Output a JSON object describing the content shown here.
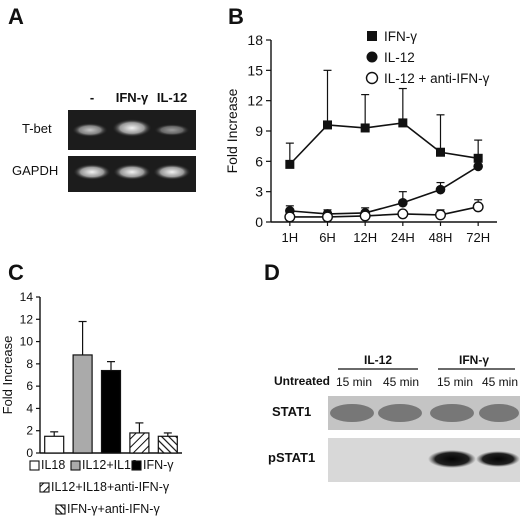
{
  "panel_labels": {
    "A": "A",
    "B": "B",
    "C": "C",
    "D": "D"
  },
  "panel_a": {
    "lanes": [
      "-",
      "IFN-γ",
      "IL-12"
    ],
    "rows": [
      "T-bet",
      "GAPDH"
    ]
  },
  "panel_d": {
    "groups": [
      {
        "label": "IL-12",
        "times": [
          "15 min",
          "45 min"
        ]
      },
      {
        "label": "IFN-γ",
        "times": [
          "15 min",
          "45 min"
        ]
      }
    ],
    "untreated_label": "Untreated",
    "rows": [
      "STAT1",
      "pSTAT1"
    ]
  },
  "chart_data": [
    {
      "panel": "B",
      "type": "line",
      "categories": [
        "1H",
        "6H",
        "12H",
        "24H",
        "48H",
        "72H"
      ],
      "ylabel": "Fold Increase",
      "ylim": [
        0,
        18
      ],
      "yticks": [
        0,
        3,
        6,
        9,
        12,
        15,
        18
      ],
      "legend_position": "top-right",
      "series": [
        {
          "name": "IFN-γ",
          "marker": "filled-square",
          "values": [
            5.7,
            9.6,
            9.3,
            9.8,
            6.9,
            6.3
          ],
          "err": [
            2.1,
            5.4,
            3.3,
            3.4,
            3.7,
            1.8
          ]
        },
        {
          "name": "IL-12",
          "marker": "filled-circle",
          "values": [
            1.1,
            0.8,
            0.9,
            1.9,
            3.2,
            5.5
          ],
          "err": [
            0.5,
            0.4,
            0.5,
            1.1,
            0.7,
            0.6
          ]
        },
        {
          "name": "IL-12 + anti-IFN-γ",
          "marker": "open-circle",
          "values": [
            0.5,
            0.5,
            0.6,
            0.8,
            0.7,
            1.5
          ],
          "err": [
            0.3,
            0.3,
            0.2,
            0.2,
            0.5,
            0.7
          ]
        }
      ]
    },
    {
      "panel": "C",
      "type": "bar",
      "categories": [
        "IL18",
        "IL12+IL18",
        "IFN-γ",
        "IL12+IL18+anti-IFN-γ",
        "IFN-γ+anti-IFN-γ"
      ],
      "values": [
        1.5,
        8.8,
        7.4,
        1.8,
        1.5
      ],
      "err": [
        0.4,
        3.0,
        0.8,
        0.9,
        0.3
      ],
      "fills": [
        "white",
        "#aaaaaa",
        "#000000",
        "hatch",
        "hatch-dense"
      ],
      "ylabel": "Fold Increase",
      "ylim": [
        0,
        14
      ],
      "yticks": [
        0,
        2,
        4,
        6,
        8,
        10,
        12,
        14
      ],
      "legend_position": "bottom"
    }
  ]
}
